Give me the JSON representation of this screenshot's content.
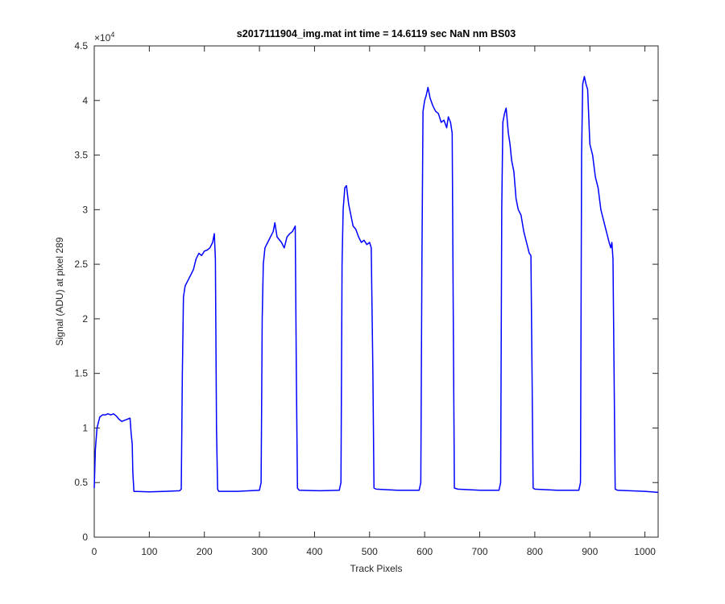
{
  "chart_data": {
    "type": "line",
    "title": "s2017111904_img.mat int time = 14.6119 sec  NaN nm BS03",
    "x_label": "Track Pixels",
    "y_label": "Signal (ADU) at pixel 289",
    "y_exponent": {
      "base": "×10",
      "power": "4"
    },
    "color": "#0000ff",
    "xlim": [
      0,
      1024
    ],
    "ylim": [
      0,
      4.5
    ],
    "xticks": [
      0,
      100,
      200,
      300,
      400,
      500,
      600,
      700,
      800,
      900,
      1000
    ],
    "yticks": [
      0,
      0.5,
      1,
      1.5,
      2,
      2.5,
      3,
      3.5,
      4,
      4.5
    ],
    "grid": false,
    "x": [
      0,
      2,
      5,
      10,
      15,
      20,
      25,
      30,
      35,
      40,
      45,
      50,
      55,
      60,
      65,
      67,
      69,
      70,
      72,
      100,
      130,
      155,
      158,
      160,
      162,
      165,
      170,
      175,
      180,
      185,
      190,
      195,
      200,
      205,
      210,
      215,
      218,
      220,
      222,
      224,
      226,
      260,
      300,
      303,
      305,
      307,
      310,
      315,
      320,
      325,
      328,
      332,
      340,
      345,
      350,
      355,
      360,
      365,
      367,
      369,
      372,
      410,
      445,
      448,
      450,
      452,
      455,
      458,
      462,
      466,
      470,
      475,
      480,
      485,
      490,
      495,
      500,
      503,
      506,
      508,
      512,
      550,
      590,
      593,
      595,
      597,
      600,
      603,
      606,
      610,
      615,
      620,
      625,
      630,
      635,
      640,
      643,
      647,
      650,
      652,
      654,
      660,
      700,
      735,
      738,
      740,
      742,
      745,
      748,
      752,
      755,
      758,
      762,
      766,
      770,
      775,
      780,
      785,
      790,
      793,
      795,
      797,
      800,
      840,
      880,
      883,
      885,
      887,
      890,
      893,
      896,
      900,
      905,
      910,
      915,
      920,
      925,
      930,
      935,
      938,
      940,
      942,
      944,
      946,
      950,
      1000,
      1024
    ],
    "values": [
      0.45,
      0.8,
      1.0,
      1.1,
      1.12,
      1.12,
      1.13,
      1.12,
      1.13,
      1.11,
      1.08,
      1.06,
      1.07,
      1.08,
      1.09,
      0.95,
      0.85,
      0.6,
      0.42,
      0.415,
      0.42,
      0.425,
      0.44,
      1.5,
      2.2,
      2.3,
      2.35,
      2.4,
      2.45,
      2.55,
      2.6,
      2.58,
      2.62,
      2.63,
      2.65,
      2.7,
      2.78,
      2.55,
      1.0,
      0.44,
      0.42,
      0.42,
      0.43,
      0.5,
      2.0,
      2.5,
      2.65,
      2.7,
      2.75,
      2.8,
      2.88,
      2.75,
      2.7,
      2.65,
      2.75,
      2.78,
      2.8,
      2.85,
      1.5,
      0.45,
      0.43,
      0.425,
      0.43,
      0.5,
      2.5,
      3.0,
      3.2,
      3.22,
      3.05,
      2.95,
      2.85,
      2.82,
      2.75,
      2.7,
      2.72,
      2.68,
      2.7,
      2.65,
      1.5,
      0.45,
      0.44,
      0.43,
      0.43,
      0.5,
      2.5,
      3.9,
      4.0,
      4.05,
      4.12,
      4.02,
      3.95,
      3.9,
      3.88,
      3.8,
      3.82,
      3.75,
      3.85,
      3.8,
      3.7,
      2.0,
      0.45,
      0.44,
      0.43,
      0.43,
      0.5,
      3.0,
      3.8,
      3.88,
      3.93,
      3.7,
      3.6,
      3.45,
      3.35,
      3.1,
      3.0,
      2.95,
      2.8,
      2.7,
      2.6,
      2.58,
      1.5,
      0.45,
      0.44,
      0.43,
      0.43,
      0.5,
      3.5,
      4.15,
      4.22,
      4.15,
      4.1,
      3.6,
      3.5,
      3.3,
      3.2,
      3.0,
      2.9,
      2.8,
      2.7,
      2.65,
      2.7,
      2.55,
      1.5,
      0.44,
      0.43,
      0.42,
      0.41
    ]
  }
}
